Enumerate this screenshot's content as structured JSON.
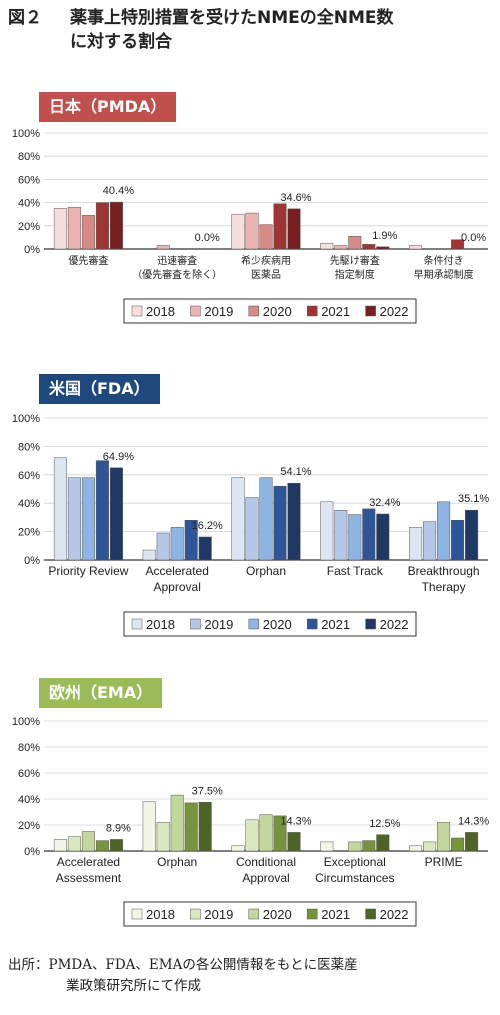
{
  "title_line1": "薬事上特別措置を受けたNMEの全NME数",
  "title_line2": "に対する割合",
  "figure_label": "図２",
  "source_line1": "出所：PMDA、FDA、EMAの各公開情報をもとに医薬産",
  "source_line2": "業政策研究所にて作成",
  "chart_data": [
    {
      "type": "bar",
      "panel_label": "日本（PMDA）",
      "panel_color": "#c0504d",
      "ylim": [
        0,
        100
      ],
      "yticks": [
        "0%",
        "20%",
        "40%",
        "60%",
        "80%",
        "100%"
      ],
      "categories": [
        [
          "優先審査"
        ],
        [
          "迅速審査",
          "（優先審査を除く）"
        ],
        [
          "希少疾病用",
          "医薬品"
        ],
        [
          "先駆け審査",
          "指定制度"
        ],
        [
          "条件付き",
          "早期承認制度"
        ]
      ],
      "series": [
        {
          "name": "2018",
          "color": "#f6dedd",
          "values": [
            35,
            0,
            30,
            5,
            3
          ]
        },
        {
          "name": "2019",
          "color": "#ebb3b1",
          "values": [
            36,
            3,
            31,
            3,
            0
          ]
        },
        {
          "name": "2020",
          "color": "#d88a88",
          "values": [
            29,
            0,
            21,
            11,
            0
          ]
        },
        {
          "name": "2021",
          "color": "#9e3533",
          "values": [
            40,
            0,
            39,
            4,
            8
          ]
        },
        {
          "name": "2022",
          "color": "#7a1f1f",
          "values": [
            40.4,
            0.0,
            34.6,
            1.9,
            0.0
          ]
        }
      ],
      "annotations": [
        {
          "cat": 0,
          "text": "40.4%"
        },
        {
          "cat": 1,
          "text": "0.0%"
        },
        {
          "cat": 2,
          "text": "34.6%"
        },
        {
          "cat": 3,
          "text": "1.9%"
        },
        {
          "cat": 4,
          "text": "0.0%"
        }
      ],
      "legend": [
        "2018",
        "2019",
        "2020",
        "2021",
        "2022"
      ]
    },
    {
      "type": "bar",
      "panel_label": "米国（FDA）",
      "panel_color": "#1f497d",
      "ylim": [
        0,
        100
      ],
      "yticks": [
        "0%",
        "20%",
        "40%",
        "60%",
        "80%",
        "100%"
      ],
      "categories": [
        [
          "Priority Review"
        ],
        [
          "Accelerated",
          "Approval"
        ],
        [
          "Orphan"
        ],
        [
          "Fast Track"
        ],
        [
          "Breakthrough",
          "Therapy"
        ]
      ],
      "series": [
        {
          "name": "2018",
          "color": "#dce6f2",
          "values": [
            72,
            7,
            58,
            41,
            23
          ]
        },
        {
          "name": "2019",
          "color": "#b4c7e7",
          "values": [
            58,
            19,
            44,
            35,
            27
          ]
        },
        {
          "name": "2020",
          "color": "#8eb4e3",
          "values": [
            58,
            23,
            58,
            32,
            41
          ]
        },
        {
          "name": "2021",
          "color": "#2e5597",
          "values": [
            70,
            28,
            52,
            36,
            28
          ]
        },
        {
          "name": "2022",
          "color": "#1f3864",
          "values": [
            64.9,
            16.2,
            54.1,
            32.4,
            35.1
          ]
        }
      ],
      "annotations": [
        {
          "cat": 0,
          "text": "64.9%"
        },
        {
          "cat": 1,
          "text": "16.2%"
        },
        {
          "cat": 2,
          "text": "54.1%"
        },
        {
          "cat": 3,
          "text": "32.4%"
        },
        {
          "cat": 4,
          "text": "35.1%"
        }
      ],
      "legend": [
        "2018",
        "2019",
        "2020",
        "2021",
        "2022"
      ]
    },
    {
      "type": "bar",
      "panel_label": "欧州（EMA）",
      "panel_color": "#9bbb59",
      "ylim": [
        0,
        100
      ],
      "yticks": [
        "0%",
        "20%",
        "40%",
        "60%",
        "80%",
        "100%"
      ],
      "categories": [
        [
          "Accelerated",
          "Assessment"
        ],
        [
          "Orphan"
        ],
        [
          "Conditional",
          "Approval"
        ],
        [
          "Exceptional",
          "Circumstances"
        ],
        [
          "PRIME"
        ]
      ],
      "series": [
        {
          "name": "2018",
          "color": "#f2f5e6",
          "values": [
            9,
            38,
            4,
            7,
            4
          ]
        },
        {
          "name": "2019",
          "color": "#dbe8bf",
          "values": [
            11,
            22,
            24,
            0,
            7
          ]
        },
        {
          "name": "2020",
          "color": "#c3d69b",
          "values": [
            15,
            43,
            28,
            7,
            22
          ]
        },
        {
          "name": "2021",
          "color": "#77933c",
          "values": [
            8,
            37,
            27,
            8,
            10
          ]
        },
        {
          "name": "2022",
          "color": "#4f6228",
          "values": [
            8.9,
            37.5,
            14.3,
            12.5,
            14.3
          ]
        }
      ],
      "annotations": [
        {
          "cat": 0,
          "text": "8.9%"
        },
        {
          "cat": 1,
          "text": "37.5%"
        },
        {
          "cat": 2,
          "text": "14.3%"
        },
        {
          "cat": 3,
          "text": "12.5%"
        },
        {
          "cat": 4,
          "text": "14.3%"
        }
      ],
      "legend": [
        "2018",
        "2019",
        "2020",
        "2021",
        "2022"
      ]
    }
  ]
}
